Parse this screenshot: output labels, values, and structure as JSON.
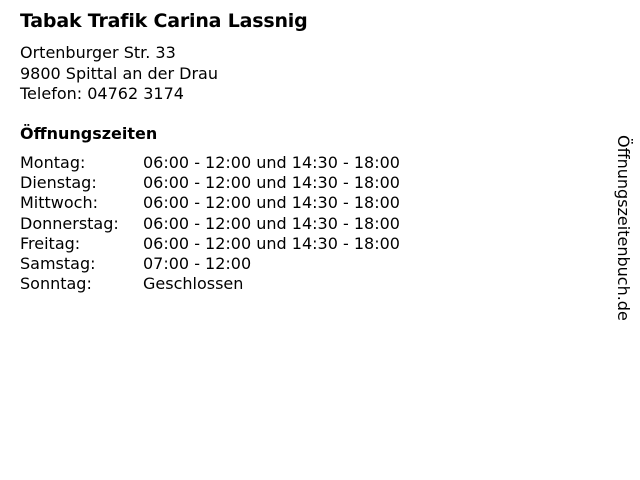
{
  "title": "Tabak Trafik Carina Lassnig",
  "address": {
    "street": "Ortenburger Str. 33",
    "city": "9800 Spittal an der Drau",
    "phone": "Telefon: 04762 3174"
  },
  "hours_heading": "Öffnungszeiten",
  "hours": [
    {
      "day": "Montag:",
      "time": "06:00 - 12:00 und 14:30 - 18:00"
    },
    {
      "day": "Dienstag:",
      "time": "06:00 - 12:00 und 14:30 - 18:00"
    },
    {
      "day": "Mittwoch:",
      "time": "06:00 - 12:00 und 14:30 - 18:00"
    },
    {
      "day": "Donnerstag:",
      "time": "06:00 - 12:00 und 14:30 - 18:00"
    },
    {
      "day": "Freitag:",
      "time": "06:00 - 12:00 und 14:30 - 18:00"
    },
    {
      "day": "Samstag:",
      "time": "07:00 - 12:00"
    },
    {
      "day": "Sonntag:",
      "time": "Geschlossen"
    }
  ],
  "watermark": "Öffnungszeitenbuch.de"
}
